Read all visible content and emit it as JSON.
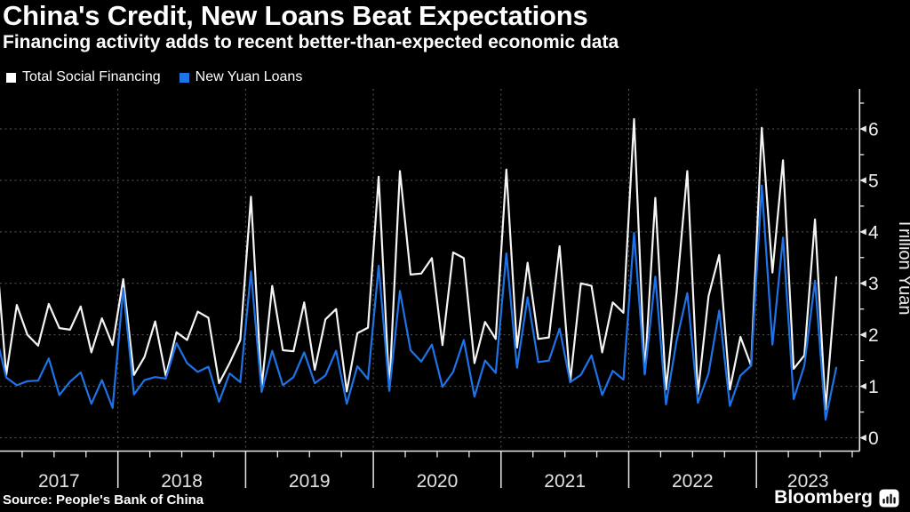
{
  "header": {
    "title": "China's Credit, New Loans Beat Expectations",
    "subtitle": "Financing activity adds to recent better-than-expected economic data"
  },
  "legend": {
    "items": [
      {
        "label": "Total Social Financing",
        "color": "#ffffff"
      },
      {
        "label": "New Yuan Loans",
        "color": "#1f73e8"
      }
    ]
  },
  "chart_data": {
    "type": "line",
    "title": "China's Credit, New Loans Beat Expectations",
    "subtitle": "Financing activity adds to recent better-than-expected economic data",
    "x_frequency": "monthly",
    "x_start": "2017-01",
    "x_end": "2023-08",
    "x_tick_labels": [
      "2017",
      "2018",
      "2019",
      "2020",
      "2021",
      "2022",
      "2023"
    ],
    "ylabel": "Trillion Yuan",
    "yticks": [
      0,
      1,
      2,
      3,
      4,
      5,
      6
    ],
    "ylim": [
      0,
      6.8
    ],
    "grid": true,
    "legend_position": "top-left",
    "series": [
      {
        "name": "Total Social Financing",
        "color": "#f4f4f4",
        "values": [
          3.8,
          1.22,
          2.58,
          2.0,
          1.79,
          2.6,
          2.13,
          2.1,
          2.55,
          1.66,
          2.32,
          1.8,
          3.08,
          1.22,
          1.57,
          2.26,
          1.2,
          2.05,
          1.9,
          2.45,
          2.33,
          1.06,
          1.45,
          1.9,
          4.68,
          0.98,
          2.95,
          1.7,
          1.68,
          2.63,
          1.32,
          2.3,
          2.5,
          0.9,
          2.03,
          2.14,
          5.07,
          0.93,
          5.18,
          3.17,
          3.19,
          3.49,
          1.8,
          3.6,
          3.49,
          1.45,
          2.25,
          1.92,
          5.21,
          1.75,
          3.4,
          1.92,
          1.95,
          3.72,
          1.08,
          3.0,
          2.95,
          1.66,
          2.63,
          2.43,
          6.19,
          1.25,
          4.66,
          0.94,
          2.83,
          5.18,
          0.85,
          2.75,
          3.55,
          0.94,
          1.96,
          1.4,
          6.02,
          3.21,
          5.39,
          1.34,
          1.6,
          4.24,
          0.55,
          3.12
        ]
      },
      {
        "name": "New Yuan Loans",
        "color": "#1f73e8",
        "values": [
          2.03,
          1.17,
          1.02,
          1.1,
          1.11,
          1.54,
          0.83,
          1.09,
          1.27,
          0.66,
          1.12,
          0.58,
          2.9,
          0.84,
          1.12,
          1.18,
          1.15,
          1.84,
          1.45,
          1.28,
          1.38,
          0.7,
          1.25,
          1.08,
          3.23,
          0.89,
          1.69,
          1.02,
          1.18,
          1.66,
          1.06,
          1.21,
          1.69,
          0.66,
          1.39,
          1.14,
          3.34,
          0.91,
          2.85,
          1.7,
          1.48,
          1.81,
          0.99,
          1.28,
          1.9,
          0.8,
          1.5,
          1.26,
          3.58,
          1.36,
          2.73,
          1.47,
          1.5,
          2.12,
          1.08,
          1.22,
          1.6,
          0.83,
          1.3,
          1.13,
          3.98,
          1.23,
          3.13,
          0.65,
          1.89,
          2.81,
          0.68,
          1.25,
          2.47,
          0.62,
          1.21,
          1.4,
          4.9,
          1.81,
          3.89,
          0.75,
          1.4,
          3.05,
          0.35,
          1.36
        ]
      }
    ]
  },
  "footer": {
    "source": "Source: People's Bank of China",
    "brand": "Bloomberg"
  },
  "colors": {
    "background": "#000000",
    "grid": "#5a5a5a",
    "axis": "#e8e8e8",
    "tick_label": "#eeeeee",
    "year_label": "#e3e3e3"
  }
}
